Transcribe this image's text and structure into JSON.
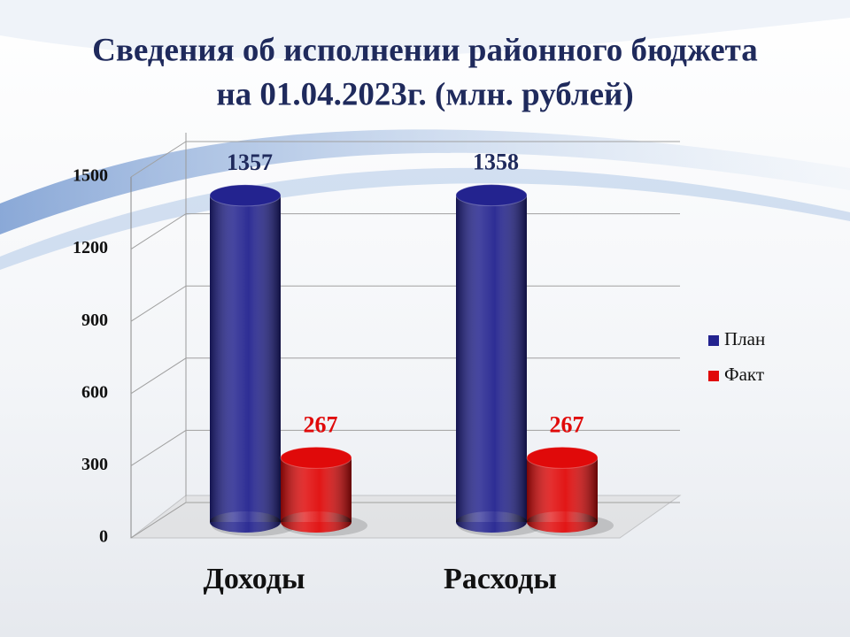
{
  "chart_data": {
    "type": "bar3d",
    "title": "Сведения об исполнении районного бюджета",
    "subtitle": "на 01.04.2023г. (млн. рублей)",
    "categories": [
      "Доходы",
      "Расходы"
    ],
    "series": [
      {
        "name": "План",
        "color": "#23238f",
        "values": [
          1357,
          1358
        ]
      },
      {
        "name": "Факт",
        "color": "#e00a0a",
        "values": [
          267,
          267
        ]
      }
    ],
    "ylim": [
      0,
      1500
    ],
    "yticks": [
      0,
      300,
      600,
      900,
      1200,
      1500
    ],
    "grid": true,
    "legend": "right"
  }
}
